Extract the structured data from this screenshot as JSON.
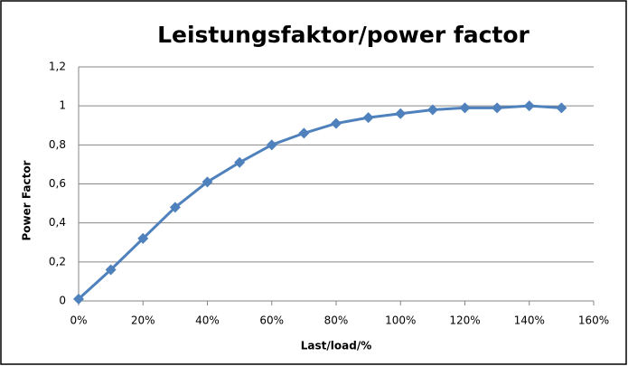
{
  "chart_data": {
    "type": "line",
    "title": "Leistungsfaktor/power factor",
    "x_label": "Last/load/%",
    "y_label": "Power Factor",
    "series": [
      {
        "name": "Power Factor",
        "color": "#4f81bd",
        "x": [
          0,
          10,
          20,
          30,
          40,
          50,
          60,
          70,
          80,
          90,
          100,
          110,
          120,
          130,
          140,
          150
        ],
        "values": [
          0.01,
          0.16,
          0.32,
          0.48,
          0.61,
          0.71,
          0.8,
          0.86,
          0.91,
          0.94,
          0.96,
          0.98,
          0.99,
          0.99,
          1.0,
          0.99
        ]
      }
    ],
    "xlim": [
      0,
      160
    ],
    "xticks": [
      {
        "value": 0,
        "label": "0%"
      },
      {
        "value": 20,
        "label": "20%"
      },
      {
        "value": 40,
        "label": "40%"
      },
      {
        "value": 60,
        "label": "60%"
      },
      {
        "value": 80,
        "label": "80%"
      },
      {
        "value": 100,
        "label": "100%"
      },
      {
        "value": 120,
        "label": "120%"
      },
      {
        "value": 140,
        "label": "140%"
      },
      {
        "value": 160,
        "label": "160%"
      }
    ],
    "ylim": [
      0,
      1.2
    ],
    "yticks": [
      0,
      {
        "value": 0.2,
        "label": "0,2"
      },
      {
        "value": 0.4,
        "label": "0,4"
      },
      {
        "value": 0.6,
        "label": "0,6"
      },
      {
        "value": 0.8,
        "label": "0,8"
      },
      1,
      {
        "value": 1.2,
        "label": "1,2"
      }
    ],
    "grid": true
  }
}
